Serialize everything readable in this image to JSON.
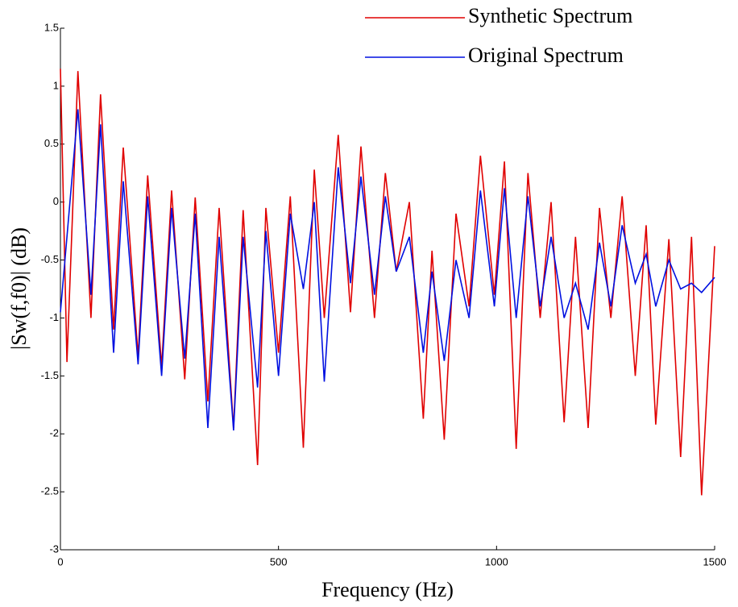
{
  "chart_data": {
    "type": "line",
    "xlabel": "Frequency (Hz)",
    "ylabel": "|Sw(f,f0)| (dB)",
    "x": [
      0,
      15,
      40,
      70,
      92,
      122,
      144,
      178,
      200,
      232,
      255,
      285,
      309,
      338,
      364,
      397,
      419,
      452,
      471,
      500,
      527,
      557,
      582,
      605,
      637,
      665,
      689,
      720,
      745,
      770,
      800,
      832,
      852,
      880,
      907,
      937,
      963,
      995,
      1018,
      1045,
      1072,
      1100,
      1125,
      1155,
      1181,
      1210,
      1236,
      1262,
      1288,
      1318,
      1343,
      1365,
      1395,
      1422,
      1447,
      1470,
      1500
    ],
    "series": [
      {
        "name": "Synthetic Spectrum",
        "color": "#e00000",
        "values": [
          1.15,
          -1.38,
          1.13,
          -1.0,
          0.93,
          -1.1,
          0.47,
          -1.33,
          0.23,
          -1.42,
          0.1,
          -1.53,
          0.04,
          -1.72,
          -0.05,
          -1.95,
          -0.07,
          -2.27,
          -0.05,
          -1.3,
          0.05,
          -2.12,
          0.28,
          -1.0,
          0.58,
          -0.95,
          0.48,
          -1.0,
          0.25,
          -0.6,
          0.0,
          -1.87,
          -0.42,
          -2.05,
          -0.1,
          -0.9,
          0.4,
          -0.8,
          0.35,
          -2.13,
          0.25,
          -1.0,
          0.0,
          -1.9,
          -0.3,
          -1.95,
          -0.05,
          -1.0,
          0.05,
          -1.5,
          -0.2,
          -1.92,
          -0.32,
          -2.2,
          -0.3,
          -2.53,
          -0.38
        ]
      },
      {
        "name": "Original Spectrum",
        "color": "#0010e0",
        "values": [
          -0.95,
          -0.3,
          0.8,
          -0.8,
          0.67,
          -1.3,
          0.18,
          -1.4,
          0.05,
          -1.5,
          -0.05,
          -1.35,
          -0.1,
          -1.95,
          -0.3,
          -1.97,
          -0.3,
          -1.6,
          -0.25,
          -1.5,
          -0.1,
          -0.75,
          0.0,
          -1.55,
          0.3,
          -0.7,
          0.22,
          -0.8,
          0.05,
          -0.6,
          -0.3,
          -1.3,
          -0.6,
          -1.37,
          -0.5,
          -1.0,
          0.1,
          -0.9,
          0.12,
          -1.0,
          0.05,
          -0.9,
          -0.3,
          -1.0,
          -0.7,
          -1.1,
          -0.35,
          -0.9,
          -0.2,
          -0.7,
          -0.45,
          -0.9,
          -0.5,
          -0.75,
          -0.7,
          -0.78,
          -0.65
        ]
      }
    ],
    "xlim": [
      0,
      1500
    ],
    "xticks": [
      0,
      500,
      1000,
      1500
    ],
    "ylim": [
      -3,
      1.5
    ],
    "yticks": [
      -3,
      -2.5,
      -2,
      -1.5,
      -1,
      -0.5,
      0,
      0.5,
      1,
      1.5
    ],
    "grid": false,
    "legend": "upper right"
  }
}
